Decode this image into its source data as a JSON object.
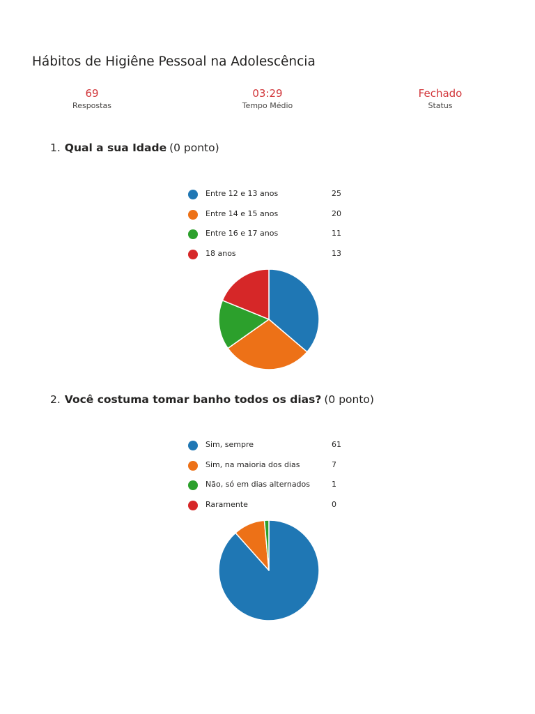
{
  "form": {
    "title": "Hábitos de Higiêne Pessoal na Adolescência"
  },
  "summary": {
    "responses": {
      "value": "69",
      "label": "Respostas"
    },
    "avg_time": {
      "value": "03:29",
      "label": "Tempo Médio"
    },
    "status": {
      "value": "Fechado",
      "label": "Status"
    }
  },
  "colors": {
    "blue": "#1f77b4",
    "orange": "#ed7117",
    "green": "#2ca02c",
    "red": "#d62728",
    "accent": "#d13438"
  },
  "questions": [
    {
      "number": "1.",
      "text": "Qual a sua Idade",
      "points": "(0 ponto)"
    },
    {
      "number": "2.",
      "text": "Você costuma tomar banho todos os dias?",
      "points": "(0 ponto)"
    }
  ],
  "chart_data": [
    {
      "type": "pie",
      "title": "Qual a sua Idade",
      "categories": [
        "Entre 12 e 13 anos",
        "Entre 14 e 15 anos",
        "Entre 16 e 17 anos",
        "18 anos"
      ],
      "values": [
        25,
        20,
        11,
        13
      ],
      "colors": [
        "#1f77b4",
        "#ed7117",
        "#2ca02c",
        "#d62728"
      ],
      "legend": "top"
    },
    {
      "type": "pie",
      "title": "Você costuma tomar banho todos os dias?",
      "categories": [
        "Sim, sempre",
        "Sim, na maioria dos dias",
        "Não, só em dias alternados",
        "Raramente"
      ],
      "values": [
        61,
        7,
        1,
        0
      ],
      "colors": [
        "#1f77b4",
        "#ed7117",
        "#2ca02c",
        "#d62728"
      ],
      "legend": "top"
    }
  ]
}
